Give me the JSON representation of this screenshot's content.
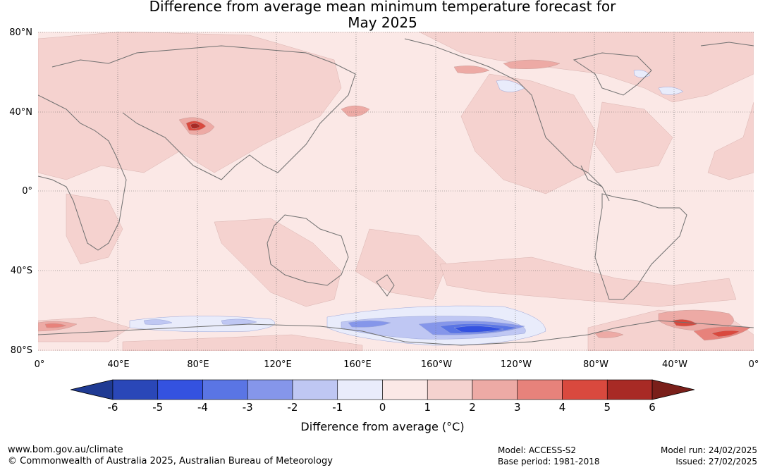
{
  "title_line1": "Difference from average mean minimum temperature forecast for",
  "title_line2": "May 2025",
  "lat_labels": [
    "80°N",
    "40°N",
    "0°",
    "40°S",
    "80°S"
  ],
  "lon_labels": [
    "0°",
    "40°E",
    "80°E",
    "120°E",
    "160°E",
    "160°W",
    "120°W",
    "80°W",
    "40°W",
    "0°"
  ],
  "colorbar": {
    "ticks": [
      "-6",
      "-5",
      "-4",
      "-3",
      "-2",
      "-1",
      "0",
      "1",
      "2",
      "3",
      "4",
      "5",
      "6"
    ],
    "colors": [
      "#1f3a93",
      "#2a47b8",
      "#3452e0",
      "#5a75e4",
      "#8596ea",
      "#bfc7f3",
      "#e9ecfb",
      "#fbe8e6",
      "#f5d2cf",
      "#edaaa5",
      "#e7827b",
      "#d9493e",
      "#a82a25",
      "#7a1f1a"
    ],
    "label": "Difference from average (°C)"
  },
  "footer": {
    "website": "www.bom.gov.au/climate",
    "copyright": "© Commonwealth of Australia 2025, Australian Bureau of Meteorology",
    "model": "Model: ACCESS-S2",
    "base_period": "Base period: 1981-2018",
    "model_run": "Model run: 24/02/2025",
    "issued": "Issued: 27/02/2025"
  }
}
